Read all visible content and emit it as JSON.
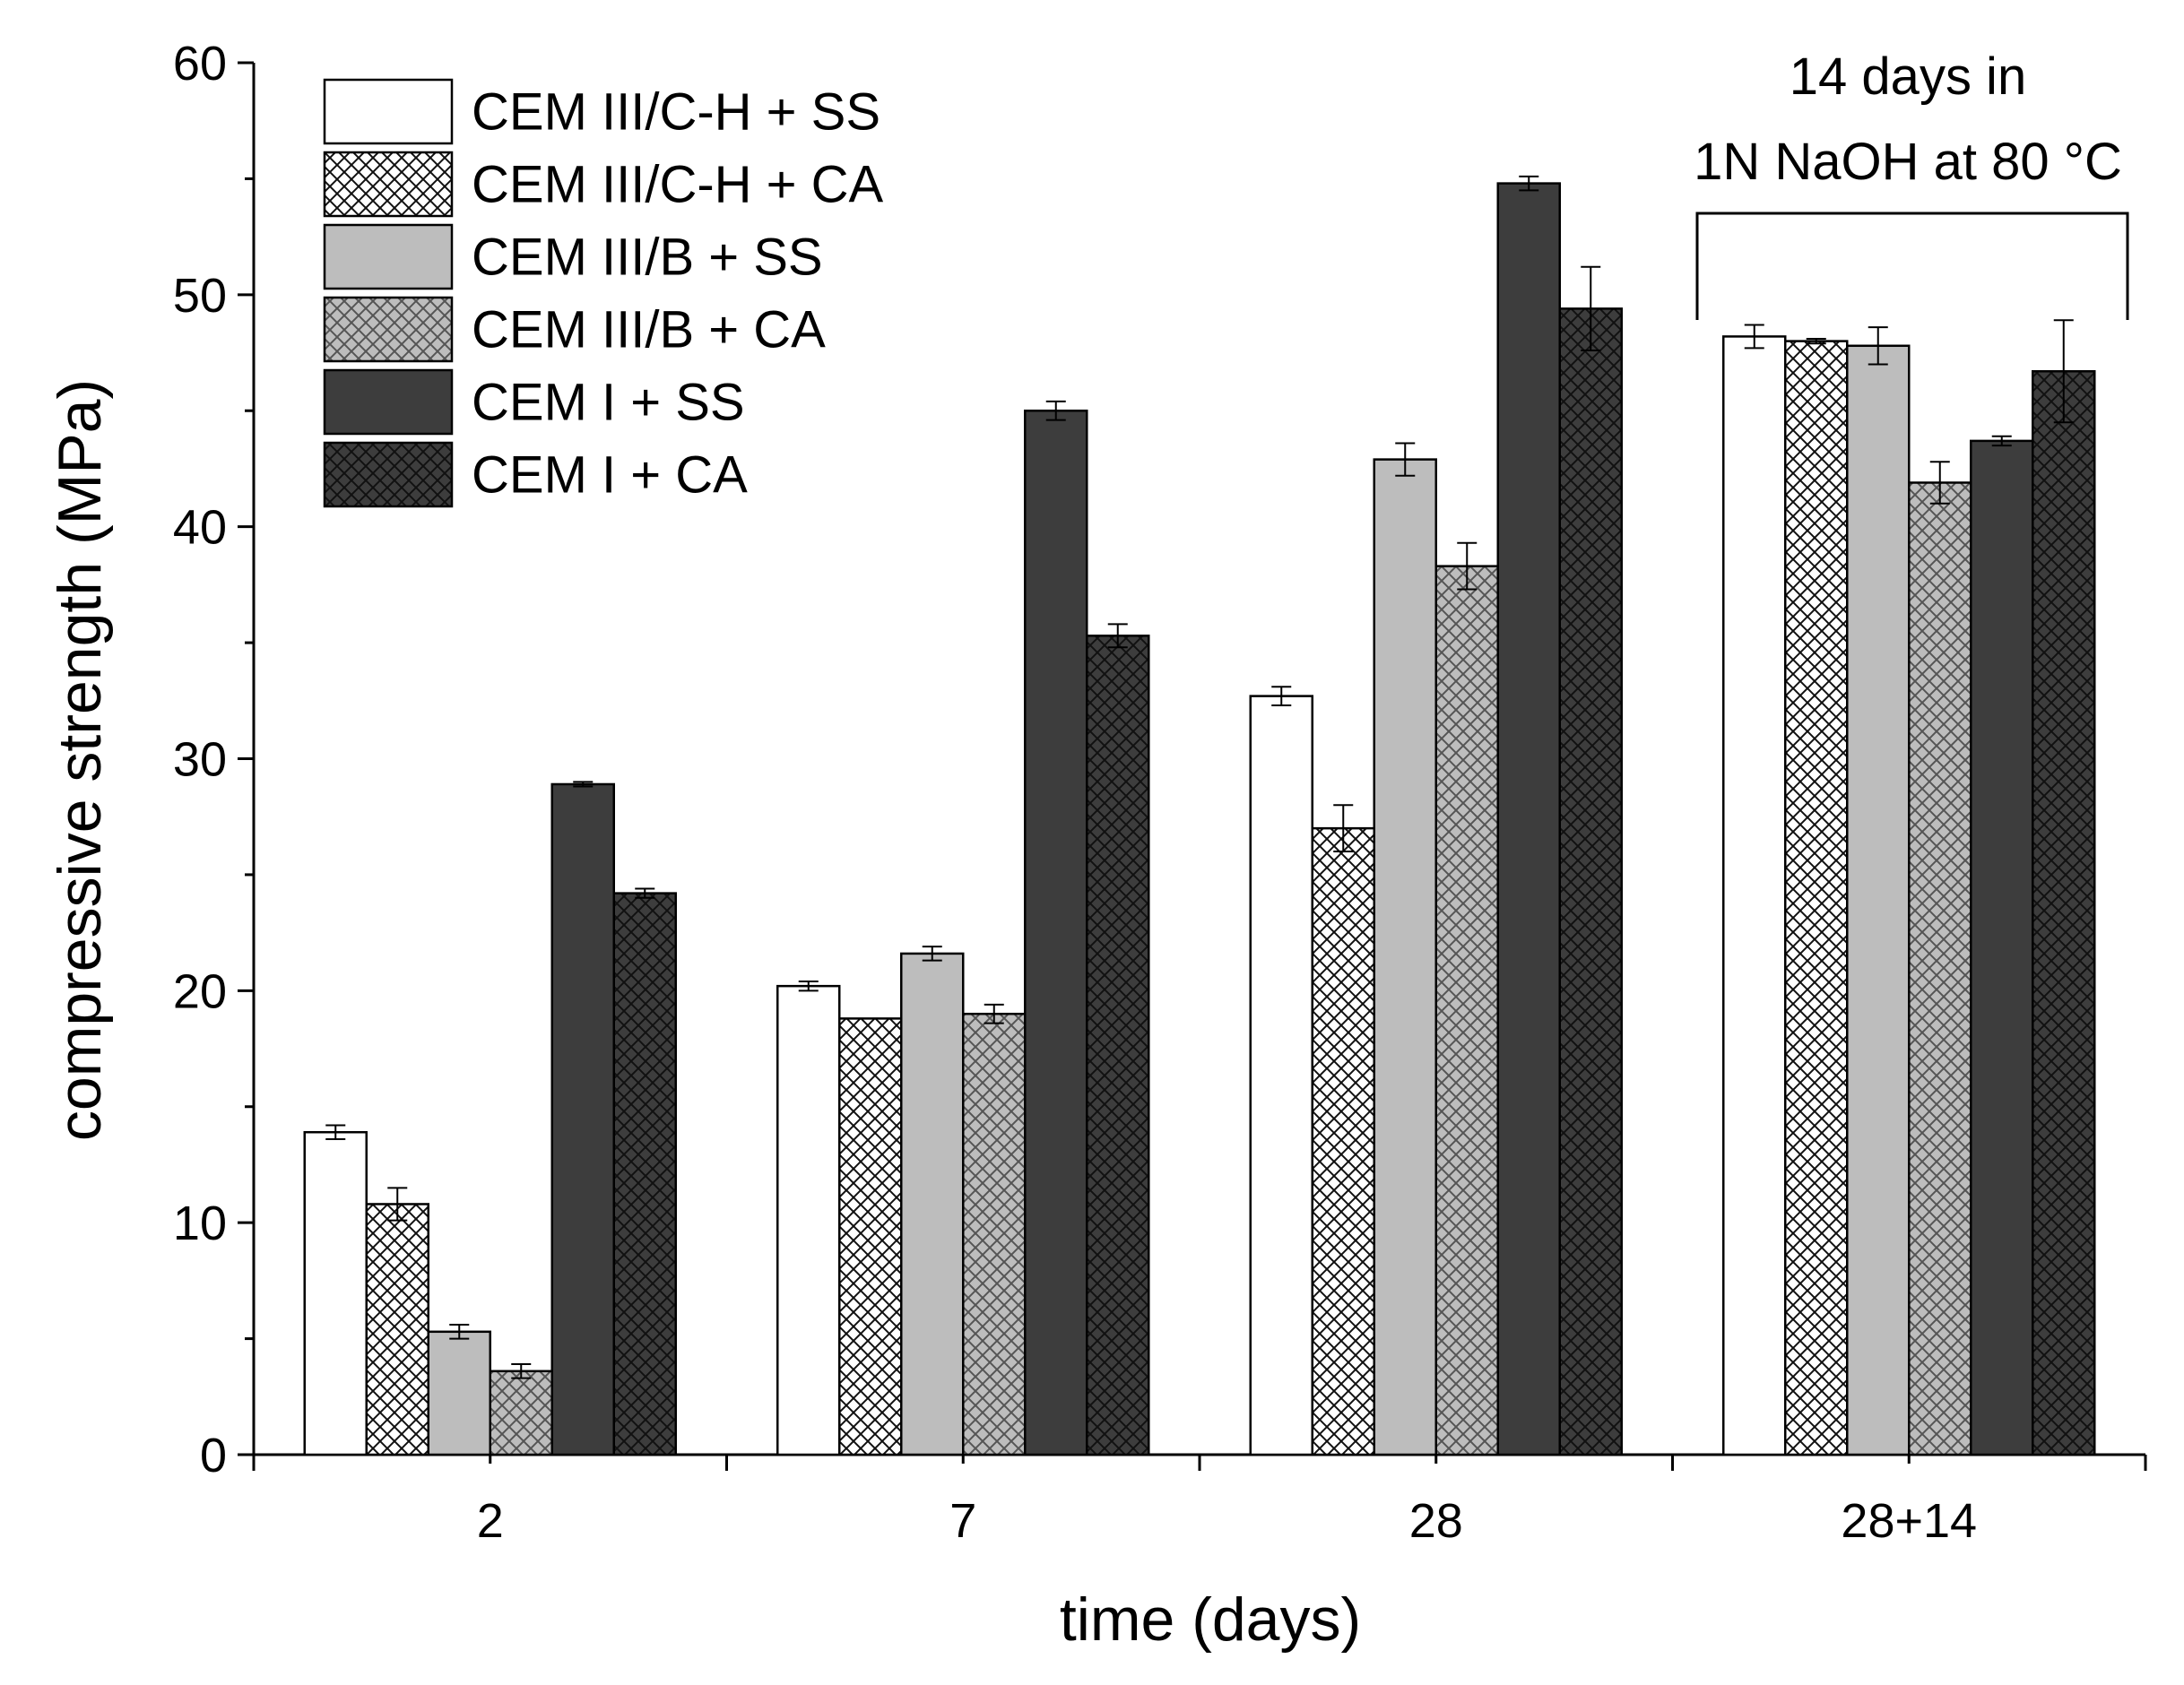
{
  "chart_data": {
    "type": "bar",
    "title": "",
    "xlabel": "time (days)",
    "ylabel": "compressive strength (MPa)",
    "ylim": [
      0,
      60
    ],
    "yticks": [
      0,
      10,
      20,
      30,
      40,
      50,
      60
    ],
    "categories": [
      "2",
      "7",
      "28",
      "28+14"
    ],
    "series": [
      {
        "name": "CEM III/C-H + SS",
        "fill": "#ffffff",
        "hatch": false,
        "hatch_color": "#000000",
        "values": [
          13.9,
          20.2,
          32.7,
          48.2
        ],
        "errors": [
          0.3,
          0.2,
          0.4,
          0.5
        ]
      },
      {
        "name": "CEM III/C-H + CA",
        "fill": "#ffffff",
        "hatch": true,
        "hatch_color": "#111111",
        "values": [
          10.8,
          18.8,
          27.0,
          48.0
        ],
        "errors": [
          0.7,
          0.0,
          1.0,
          0.1
        ]
      },
      {
        "name": "CEM III/B + SS",
        "fill": "#bdbdbd",
        "hatch": false,
        "hatch_color": "#000000",
        "values": [
          5.3,
          21.6,
          42.9,
          47.8
        ],
        "errors": [
          0.3,
          0.3,
          0.7,
          0.8
        ]
      },
      {
        "name": "CEM III/B + CA",
        "fill": "#bdbdbd",
        "hatch": true,
        "hatch_color": "#555555",
        "values": [
          3.6,
          19.0,
          38.3,
          41.9
        ],
        "errors": [
          0.3,
          0.4,
          1.0,
          0.9
        ]
      },
      {
        "name": "CEM I + SS",
        "fill": "#3d3d3d",
        "hatch": false,
        "hatch_color": "#000000",
        "values": [
          28.9,
          45.0,
          54.8,
          43.7
        ],
        "errors": [
          0.1,
          0.4,
          0.3,
          0.2
        ]
      },
      {
        "name": "CEM I + CA",
        "fill": "#3d3d3d",
        "hatch": true,
        "hatch_color": "#111111",
        "values": [
          24.2,
          35.3,
          49.4,
          46.7
        ],
        "errors": [
          0.2,
          0.5,
          1.8,
          2.2
        ]
      }
    ],
    "legend_position": "top-left",
    "annotation": {
      "lines": [
        "14 days in",
        "1N NaOH at 80 °C"
      ],
      "bracket_over_category": "28+14"
    }
  }
}
